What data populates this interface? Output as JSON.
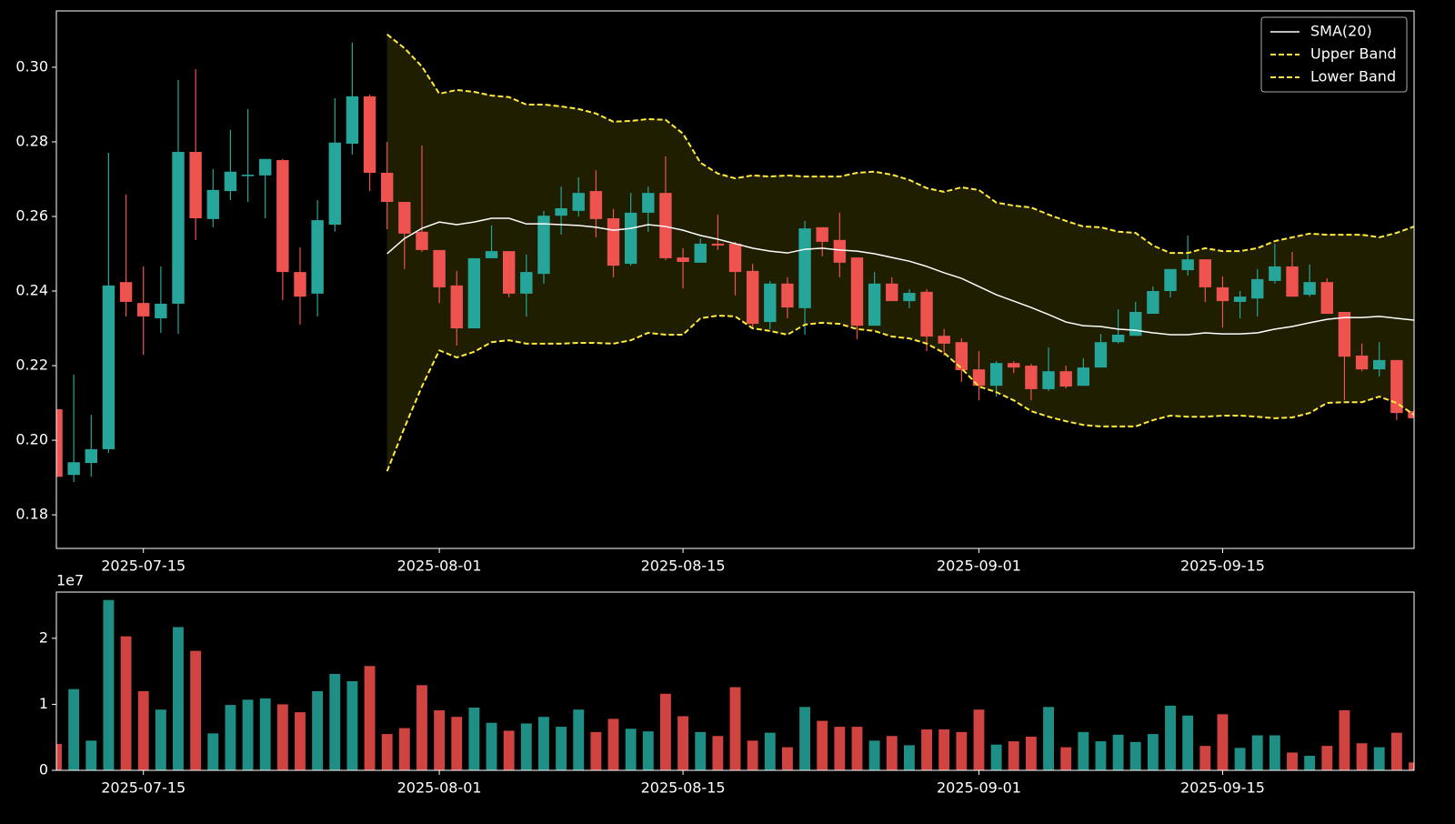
{
  "chart_data": [
    {
      "type": "candlestick",
      "x": [
        "2025-07-10",
        "2025-07-11",
        "2025-07-12",
        "2025-07-13",
        "2025-07-14",
        "2025-07-15",
        "2025-07-16",
        "2025-07-17",
        "2025-07-18",
        "2025-07-19",
        "2025-07-20",
        "2025-07-21",
        "2025-07-22",
        "2025-07-23",
        "2025-07-24",
        "2025-07-25",
        "2025-07-26",
        "2025-07-27",
        "2025-07-28",
        "2025-07-29",
        "2025-07-30",
        "2025-07-31",
        "2025-08-01",
        "2025-08-02",
        "2025-08-03",
        "2025-08-04",
        "2025-08-05",
        "2025-08-06",
        "2025-08-07",
        "2025-08-08",
        "2025-08-09",
        "2025-08-10",
        "2025-08-11",
        "2025-08-12",
        "2025-08-13",
        "2025-08-14",
        "2025-08-15",
        "2025-08-16",
        "2025-08-17",
        "2025-08-18",
        "2025-08-19",
        "2025-08-20",
        "2025-08-21",
        "2025-08-22",
        "2025-08-23",
        "2025-08-24",
        "2025-08-25",
        "2025-08-26",
        "2025-08-27",
        "2025-08-28",
        "2025-08-29",
        "2025-08-30",
        "2025-08-31",
        "2025-09-01",
        "2025-09-02",
        "2025-09-03",
        "2025-09-04",
        "2025-09-05",
        "2025-09-06",
        "2025-09-07",
        "2025-09-08",
        "2025-09-09",
        "2025-09-10",
        "2025-09-11",
        "2025-09-12",
        "2025-09-13",
        "2025-09-14",
        "2025-09-15",
        "2025-09-16",
        "2025-09-17",
        "2025-09-18",
        "2025-09-19",
        "2025-09-20",
        "2025-09-21",
        "2025-09-22",
        "2025-09-23",
        "2025-09-24",
        "2025-09-25",
        "2025-09-26"
      ],
      "open": [
        0.2083,
        0.1907,
        0.1939,
        0.1976,
        0.2424,
        0.2368,
        0.2327,
        0.2366,
        0.2773,
        0.2593,
        0.2668,
        0.2708,
        0.271,
        0.2751,
        0.2451,
        0.2393,
        0.2578,
        0.2795,
        0.2922,
        0.2717,
        0.2639,
        0.2559,
        0.251,
        0.2415,
        0.23,
        0.2488,
        0.2507,
        0.2393,
        0.2446,
        0.2602,
        0.2615,
        0.2668,
        0.2595,
        0.2473,
        0.261,
        0.2663,
        0.249,
        0.2476,
        0.2527,
        0.2527,
        0.2454,
        0.2317,
        0.242,
        0.2354,
        0.2571,
        0.2537,
        0.249,
        0.2307,
        0.242,
        0.2373,
        0.2398,
        0.228,
        0.2263,
        0.219,
        0.2146,
        0.2207,
        0.22,
        0.2137,
        0.2185,
        0.2146,
        0.2195,
        0.2263,
        0.228,
        0.2339,
        0.24,
        0.2456,
        0.2485,
        0.241,
        0.2371,
        0.238,
        0.2427,
        0.2466,
        0.239,
        0.2424,
        0.2344,
        0.2227,
        0.219,
        0.2215,
        0.2078
      ],
      "high": [
        0.2085,
        0.2176,
        0.2068,
        0.2771,
        0.2659,
        0.2466,
        0.2466,
        0.2966,
        0.2995,
        0.2727,
        0.2832,
        0.2888,
        0.2754,
        0.2754,
        0.2517,
        0.2644,
        0.2917,
        0.3066,
        0.2927,
        0.28,
        0.2639,
        0.279,
        0.251,
        0.2454,
        0.2488,
        0.2576,
        0.2507,
        0.2498,
        0.2615,
        0.268,
        0.2705,
        0.2724,
        0.262,
        0.2663,
        0.268,
        0.2761,
        0.2515,
        0.2541,
        0.2605,
        0.2532,
        0.2473,
        0.2427,
        0.2437,
        0.2588,
        0.2571,
        0.261,
        0.249,
        0.2451,
        0.2437,
        0.2405,
        0.2405,
        0.2298,
        0.2273,
        0.2239,
        0.2212,
        0.2212,
        0.2205,
        0.2249,
        0.22,
        0.222,
        0.2285,
        0.2351,
        0.2371,
        0.2412,
        0.2459,
        0.2549,
        0.2485,
        0.2439,
        0.24,
        0.2459,
        0.2527,
        0.2505,
        0.2471,
        0.2434,
        0.2344,
        0.2259,
        0.2263,
        0.2215,
        0.2083
      ],
      "low": [
        0.1902,
        0.1888,
        0.1902,
        0.1966,
        0.2332,
        0.2229,
        0.2288,
        0.2285,
        0.2537,
        0.2571,
        0.2644,
        0.2639,
        0.2595,
        0.2376,
        0.231,
        0.2332,
        0.2559,
        0.2766,
        0.2668,
        0.2566,
        0.2459,
        0.2505,
        0.2368,
        0.2254,
        0.23,
        0.2488,
        0.2383,
        0.2332,
        0.242,
        0.2551,
        0.26,
        0.2544,
        0.2437,
        0.2468,
        0.2559,
        0.2483,
        0.2407,
        0.2476,
        0.251,
        0.2388,
        0.2298,
        0.2298,
        0.2327,
        0.2283,
        0.2493,
        0.2437,
        0.2271,
        0.2307,
        0.2373,
        0.2354,
        0.2239,
        0.2227,
        0.2156,
        0.2107,
        0.2117,
        0.218,
        0.2107,
        0.2132,
        0.2139,
        0.2146,
        0.2195,
        0.2259,
        0.228,
        0.2339,
        0.2383,
        0.2441,
        0.2371,
        0.2302,
        0.2327,
        0.2332,
        0.242,
        0.2385,
        0.2385,
        0.2339,
        0.2107,
        0.2185,
        0.2171,
        0.2054,
        0.2059
      ],
      "close": [
        0.1902,
        0.1941,
        0.1976,
        0.2415,
        0.2371,
        0.2332,
        0.2366,
        0.2773,
        0.2595,
        0.2671,
        0.272,
        0.2712,
        0.2754,
        0.2451,
        0.2385,
        0.259,
        0.2798,
        0.2922,
        0.2717,
        0.2639,
        0.2554,
        0.251,
        0.241,
        0.23,
        0.2488,
        0.2507,
        0.2393,
        0.2451,
        0.2602,
        0.2622,
        0.2663,
        0.2593,
        0.2468,
        0.261,
        0.2663,
        0.2488,
        0.2478,
        0.2527,
        0.2522,
        0.2451,
        0.2312,
        0.242,
        0.2356,
        0.2568,
        0.2532,
        0.2476,
        0.2307,
        0.242,
        0.2373,
        0.2395,
        0.2278,
        0.2259,
        0.2188,
        0.2146,
        0.2207,
        0.2195,
        0.2137,
        0.2185,
        0.2144,
        0.2195,
        0.2263,
        0.2283,
        0.2344,
        0.24,
        0.2459,
        0.2485,
        0.241,
        0.2373,
        0.2385,
        0.2432,
        0.2466,
        0.2385,
        0.2424,
        0.2339,
        0.2224,
        0.219,
        0.2215,
        0.2073,
        0.2059
      ],
      "up_color": "#26a69a",
      "down_color": "#ef5350",
      "series": [
        {
          "name": "SMA(20)",
          "color": "#ffffff",
          "style": "solid",
          "values": [
            null,
            null,
            null,
            null,
            null,
            null,
            null,
            null,
            null,
            null,
            null,
            null,
            null,
            null,
            null,
            null,
            null,
            null,
            null,
            0.25,
            0.2541,
            0.2568,
            0.2585,
            0.2578,
            0.2585,
            0.2595,
            0.2595,
            0.258,
            0.258,
            0.2578,
            0.2576,
            0.2571,
            0.2563,
            0.2568,
            0.2578,
            0.2573,
            0.2563,
            0.2549,
            0.2539,
            0.2527,
            0.2515,
            0.2507,
            0.2502,
            0.2512,
            0.2515,
            0.251,
            0.2507,
            0.25,
            0.249,
            0.248,
            0.2466,
            0.2449,
            0.2434,
            0.2412,
            0.239,
            0.2373,
            0.2356,
            0.2337,
            0.2317,
            0.2307,
            0.2305,
            0.2298,
            0.2295,
            0.2288,
            0.2283,
            0.2283,
            0.2288,
            0.2285,
            0.2285,
            0.2288,
            0.2298,
            0.2305,
            0.2315,
            0.2324,
            0.2329,
            0.2329,
            0.2332,
            0.2327,
            0.2322
          ]
        },
        {
          "name": "Upper Band",
          "color": "#ffeb3b",
          "style": "dashed",
          "values": [
            null,
            null,
            null,
            null,
            null,
            null,
            null,
            null,
            null,
            null,
            null,
            null,
            null,
            null,
            null,
            null,
            null,
            null,
            null,
            0.3088,
            0.3051,
            0.3002,
            0.2929,
            0.2939,
            0.2934,
            0.2924,
            0.292,
            0.29,
            0.29,
            0.2895,
            0.2888,
            0.2876,
            0.2854,
            0.2856,
            0.2861,
            0.2859,
            0.2822,
            0.2744,
            0.2715,
            0.2702,
            0.271,
            0.2707,
            0.271,
            0.2707,
            0.2707,
            0.2707,
            0.2717,
            0.272,
            0.2712,
            0.2698,
            0.2676,
            0.2666,
            0.2678,
            0.2671,
            0.2637,
            0.2629,
            0.2624,
            0.2605,
            0.2588,
            0.2573,
            0.2571,
            0.2559,
            0.2556,
            0.2522,
            0.2502,
            0.2502,
            0.2515,
            0.2507,
            0.2507,
            0.2515,
            0.2534,
            0.2544,
            0.2554,
            0.2551,
            0.2551,
            0.2551,
            0.2544,
            0.2556,
            0.2573
          ]
        },
        {
          "name": "Lower Band",
          "color": "#ffeb3b",
          "style": "dashed",
          "values": [
            null,
            null,
            null,
            null,
            null,
            null,
            null,
            null,
            null,
            null,
            null,
            null,
            null,
            null,
            null,
            null,
            null,
            null,
            null,
            0.1917,
            0.2034,
            0.2144,
            0.2241,
            0.2222,
            0.2237,
            0.2263,
            0.2268,
            0.2259,
            0.2259,
            0.2259,
            0.2261,
            0.2261,
            0.2259,
            0.2268,
            0.2288,
            0.2283,
            0.2283,
            0.2327,
            0.2334,
            0.2332,
            0.23,
            0.2293,
            0.2283,
            0.231,
            0.2315,
            0.2312,
            0.2298,
            0.2293,
            0.2278,
            0.2273,
            0.2259,
            0.2234,
            0.2193,
            0.2144,
            0.2129,
            0.2107,
            0.2078,
            0.2063,
            0.2051,
            0.2041,
            0.2037,
            0.2037,
            0.2037,
            0.2054,
            0.2066,
            0.2063,
            0.2063,
            0.2066,
            0.2066,
            0.2063,
            0.2059,
            0.2061,
            0.2073,
            0.21,
            0.2102,
            0.2102,
            0.2117,
            0.21,
            0.2068
          ]
        }
      ],
      "band_fill": "#2a2800",
      "xlim": [
        "2025-07-10",
        "2025-09-26"
      ],
      "xticks": [
        "2025-07-15",
        "2025-08-01",
        "2025-08-15",
        "2025-09-01",
        "2025-09-15"
      ],
      "ylim": [
        0.171,
        0.3151
      ],
      "yticks": [
        {
          "value": 0.18,
          "label": "0.18"
        },
        {
          "value": 0.2,
          "label": "0.20"
        },
        {
          "value": 0.22,
          "label": "0.22"
        },
        {
          "value": 0.24,
          "label": "0.24"
        },
        {
          "value": 0.26,
          "label": "0.26"
        },
        {
          "value": 0.28,
          "label": "0.28"
        },
        {
          "value": 0.3,
          "label": "0.30"
        }
      ],
      "grid": false,
      "legend": "upper right"
    },
    {
      "type": "bar",
      "values": [
        0.4,
        1.23,
        0.45,
        2.58,
        2.03,
        1.2,
        0.92,
        2.17,
        1.81,
        0.56,
        0.99,
        1.07,
        1.09,
        1.0,
        0.88,
        1.2,
        1.46,
        1.35,
        1.58,
        0.55,
        0.64,
        1.29,
        0.91,
        0.81,
        0.95,
        0.72,
        0.6,
        0.71,
        0.81,
        0.66,
        0.92,
        0.58,
        0.78,
        0.63,
        0.59,
        1.16,
        0.82,
        0.58,
        0.52,
        1.26,
        0.45,
        0.57,
        0.35,
        0.96,
        0.75,
        0.66,
        0.66,
        0.45,
        0.52,
        0.38,
        0.62,
        0.62,
        0.58,
        0.92,
        0.39,
        0.44,
        0.51,
        0.96,
        0.35,
        0.58,
        0.44,
        0.54,
        0.43,
        0.55,
        0.98,
        0.83,
        0.37,
        0.85,
        0.34,
        0.53,
        0.53,
        0.27,
        0.22,
        0.37,
        0.91,
        0.41,
        0.35,
        0.57,
        0.12
      ],
      "up_color": "#1f8f86",
      "down_color": "#cf4340",
      "y_offset_label": "1e7",
      "xlim": [
        "2025-07-10",
        "2025-09-26"
      ],
      "xticks": [
        "2025-07-15",
        "2025-08-01",
        "2025-08-15",
        "2025-09-01",
        "2025-09-15"
      ],
      "ylim": [
        0,
        2.7
      ],
      "yticks": [
        0,
        1,
        2
      ],
      "grid": false
    }
  ]
}
